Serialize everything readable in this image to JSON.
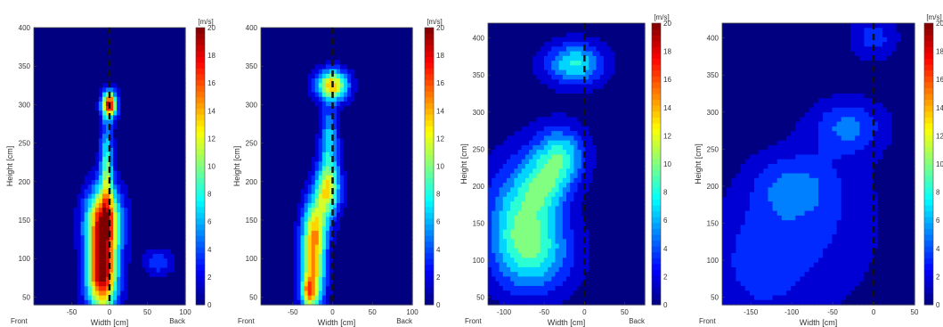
{
  "colors": {
    "map_low": "#00008f",
    "map_high": "#800000",
    "centerline": "#111111"
  },
  "chart_data": [
    {
      "type": "heatmap",
      "xlabel": "Width [cm]",
      "ylabel": "Height [cm]",
      "xlim": [
        -100,
        100
      ],
      "ylim": [
        40,
        400
      ],
      "xticks": [
        -50,
        0,
        50,
        100
      ],
      "yticks": [
        50,
        100,
        150,
        200,
        250,
        300,
        350,
        400
      ],
      "x_end_labels": {
        "left": "Front",
        "right": "Back"
      },
      "colorbar": {
        "unit": "[m/s]",
        "min": 0,
        "max": 20,
        "ticks": [
          0,
          2,
          4,
          6,
          8,
          10,
          12,
          14,
          16,
          18,
          20
        ]
      },
      "centerline_x": 0,
      "blobs": [
        {
          "x": -10,
          "y": 80,
          "sx": 14,
          "sy": 35,
          "peak": 20
        },
        {
          "x": -8,
          "y": 150,
          "sx": 16,
          "sy": 30,
          "peak": 17
        },
        {
          "x": -4,
          "y": 220,
          "sx": 6,
          "sy": 40,
          "peak": 9
        },
        {
          "x": 0,
          "y": 300,
          "sx": 7,
          "sy": 12,
          "peak": 18
        },
        {
          "x": 65,
          "y": 95,
          "sx": 14,
          "sy": 12,
          "peak": 4
        }
      ]
    },
    {
      "type": "heatmap",
      "xlabel": "Width [cm]",
      "ylabel": "Height [cm]",
      "xlim": [
        -90,
        100
      ],
      "ylim": [
        40,
        400
      ],
      "xticks": [
        -50,
        0,
        50,
        100
      ],
      "yticks": [
        50,
        100,
        150,
        200,
        250,
        300,
        350,
        400
      ],
      "x_end_labels": {
        "left": "Front",
        "right": "Back"
      },
      "colorbar": {
        "unit": "[m/s]",
        "min": 0,
        "max": 20,
        "ticks": [
          0,
          2,
          4,
          6,
          8,
          10,
          12,
          14,
          16,
          18,
          20
        ]
      },
      "centerline_x": 0,
      "blobs": [
        {
          "x": -25,
          "y": 80,
          "sx": 11,
          "sy": 35,
          "peak": 13
        },
        {
          "x": -22,
          "y": 140,
          "sx": 11,
          "sy": 28,
          "peak": 11
        },
        {
          "x": -6,
          "y": 190,
          "sx": 11,
          "sy": 25,
          "peak": 12
        },
        {
          "x": -4,
          "y": 255,
          "sx": 8,
          "sy": 30,
          "peak": 7
        },
        {
          "x": 0,
          "y": 325,
          "sx": 14,
          "sy": 14,
          "peak": 14
        },
        {
          "x": -30,
          "y": 55,
          "sx": 6,
          "sy": 12,
          "peak": 8
        }
      ]
    },
    {
      "type": "heatmap",
      "xlabel": "Width [cm]",
      "ylabel": "Height [cm]",
      "xlim": [
        -120,
        75
      ],
      "ylim": [
        40,
        420
      ],
      "xticks": [
        -100,
        -50,
        0,
        50
      ],
      "yticks": [
        50,
        100,
        150,
        200,
        250,
        300,
        350,
        400
      ],
      "x_end_labels": {
        "left": "Front",
        "right": "Back"
      },
      "colorbar": {
        "unit": "[m/s]",
        "min": 0,
        "max": 20,
        "ticks": [
          0,
          2,
          4,
          6,
          8,
          10,
          12,
          14,
          16,
          18,
          20
        ]
      },
      "centerline_x": 0,
      "blobs": [
        {
          "x": -80,
          "y": 160,
          "sx": 30,
          "sy": 55,
          "peak": 7
        },
        {
          "x": -60,
          "y": 110,
          "sx": 35,
          "sy": 40,
          "peak": 6
        },
        {
          "x": -30,
          "y": 240,
          "sx": 22,
          "sy": 28,
          "peak": 8
        },
        {
          "x": -12,
          "y": 365,
          "sx": 26,
          "sy": 20,
          "peak": 8
        },
        {
          "x": -50,
          "y": 200,
          "sx": 20,
          "sy": 25,
          "peak": 5
        }
      ]
    },
    {
      "type": "heatmap",
      "xlabel": "Width [cm]",
      "ylabel": "Height [cm]",
      "xlim": [
        -185,
        50
      ],
      "ylim": [
        40,
        420
      ],
      "xticks": [
        -150,
        -100,
        -50,
        0,
        50
      ],
      "yticks": [
        50,
        100,
        150,
        200,
        250,
        300,
        350,
        400
      ],
      "x_end_labels": {
        "left": "Front",
        "right": ""
      },
      "colorbar": {
        "unit": "[m/s]",
        "min": 0,
        "max": 20,
        "ticks": [
          0,
          2,
          4,
          6,
          8,
          10,
          12,
          14,
          16,
          18,
          20
        ]
      },
      "centerline_x": 0,
      "blobs": [
        {
          "x": -140,
          "y": 100,
          "sx": 40,
          "sy": 60,
          "peak": 3.5
        },
        {
          "x": -100,
          "y": 200,
          "sx": 35,
          "sy": 30,
          "peak": 3.5
        },
        {
          "x": -30,
          "y": 280,
          "sx": 30,
          "sy": 25,
          "peak": 4.5
        },
        {
          "x": 0,
          "y": 400,
          "sx": 20,
          "sy": 20,
          "peak": 3.5
        },
        {
          "x": -60,
          "y": 150,
          "sx": 50,
          "sy": 80,
          "peak": 2.5
        }
      ]
    }
  ]
}
